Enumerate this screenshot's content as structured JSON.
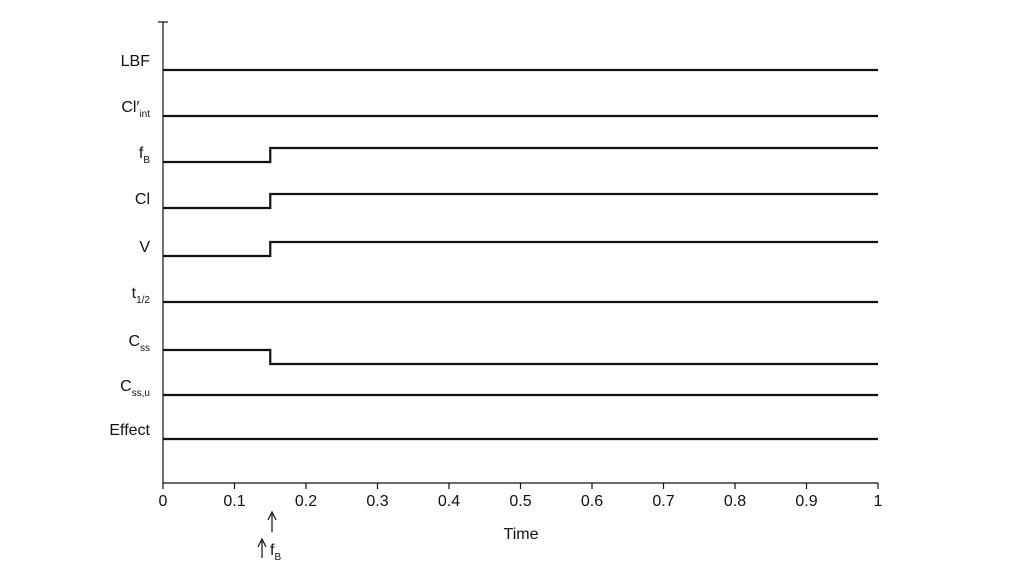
{
  "chart_data": {
    "type": "line",
    "xlabel": "Time",
    "xlim": [
      0,
      1
    ],
    "x_ticks": [
      "0",
      "0.1",
      "0.2",
      "0.3",
      "0.4",
      "0.5",
      "0.6",
      "0.7",
      "0.8",
      "0.9",
      "1"
    ],
    "change_time": 0.15,
    "annotation": {
      "base": "f",
      "sub": "B"
    },
    "grid": false,
    "series": [
      {
        "base": "LBF",
        "sub": "",
        "prime": "",
        "before": 0,
        "after": 0
      },
      {
        "base": "Cl",
        "sub": "int",
        "prime": "′",
        "before": 0,
        "after": 0
      },
      {
        "base": "f",
        "sub": "B",
        "prime": "",
        "before": 0,
        "after": 1
      },
      {
        "base": "Cl",
        "sub": "",
        "prime": "",
        "before": 0,
        "after": 1
      },
      {
        "base": "V",
        "sub": "",
        "prime": "",
        "before": 0,
        "after": 1
      },
      {
        "base": "t",
        "sub": "1/2",
        "prime": "",
        "before": 0,
        "after": 0
      },
      {
        "base": "C",
        "sub": "ss",
        "prime": "",
        "before": 0,
        "after": -1
      },
      {
        "base": "C",
        "sub": "ss,u",
        "prime": "",
        "before": 0,
        "after": 0
      },
      {
        "base": "Effect",
        "sub": "",
        "prime": "",
        "before": 0,
        "after": 0
      }
    ]
  }
}
